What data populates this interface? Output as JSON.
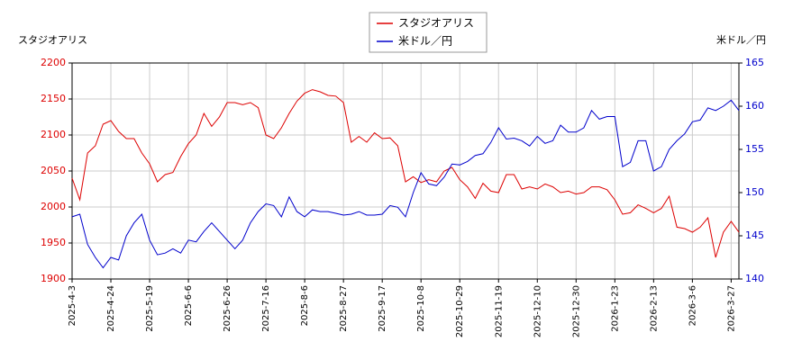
{
  "chart_data": {
    "type": "line",
    "legend": "top-center",
    "grid": true,
    "ylabel": "スタジオアリス",
    "y2label": "米ドル／円",
    "ylim": [
      1900,
      2200
    ],
    "yticks": [
      1900,
      1950,
      2000,
      2050,
      2100,
      2150,
      2200
    ],
    "y2lim": [
      140,
      165
    ],
    "y2ticks": [
      140,
      145,
      150,
      155,
      160,
      165
    ],
    "categories": [
      "2025-4-3",
      null,
      null,
      null,
      null,
      "2025-4-24",
      null,
      null,
      null,
      null,
      "2025-5-19",
      null,
      null,
      null,
      null,
      "2025-6-6",
      null,
      null,
      null,
      null,
      "2025-6-26",
      null,
      null,
      null,
      null,
      "2025-7-16",
      null,
      null,
      null,
      null,
      "2025-8-6",
      null,
      null,
      null,
      null,
      "2025-8-27",
      null,
      null,
      null,
      null,
      "2025-9-17",
      null,
      null,
      null,
      null,
      "2025-10-8",
      null,
      null,
      null,
      null,
      "2025-10-29",
      null,
      null,
      null,
      null,
      "2025-11-19",
      null,
      null,
      null,
      null,
      "2025-12-10",
      null,
      null,
      null,
      null,
      "2025-12-30",
      null,
      null,
      null,
      null,
      "2026-1-23",
      null,
      null,
      null,
      null,
      "2026-2-13",
      null,
      null,
      null,
      null,
      "2026-3-6",
      null,
      null,
      null,
      null,
      "2026-3-27",
      null
    ],
    "series": [
      {
        "name": "スタジオアリス",
        "color": "#dd0000",
        "axis": "y",
        "values": [
          2040,
          2010,
          2075,
          2085,
          2115,
          2120,
          2105,
          2095,
          2095,
          2075,
          2060,
          2035,
          2045,
          2048,
          2070,
          2088,
          2100,
          2130,
          2112,
          2125,
          2145,
          2145,
          2142,
          2145,
          2138,
          2100,
          2095,
          2110,
          2130,
          2147,
          2158,
          2163,
          2160,
          2155,
          2154,
          2145,
          2090,
          2098,
          2090,
          2103,
          2095,
          2096,
          2085,
          2035,
          2042,
          2034,
          2038,
          2035,
          2050,
          2055,
          2038,
          2028,
          2012,
          2033,
          2022,
          2020,
          2045,
          2045,
          2025,
          2028,
          2025,
          2032,
          2028,
          2020,
          2022,
          2018,
          2020,
          2028,
          2028,
          2024,
          2010,
          1990,
          1992,
          2003,
          1998,
          1992,
          1998,
          2015,
          1972,
          1970,
          1965,
          1972,
          1985,
          1930,
          1965,
          1980,
          1965
        ]
      },
      {
        "name": "米ドル／円",
        "color": "#0000cc",
        "axis": "y2",
        "values": [
          147.2,
          147.5,
          144,
          142.5,
          141.3,
          142.5,
          142.2,
          145,
          146.5,
          147.5,
          144.5,
          142.8,
          143,
          143.5,
          143,
          144.5,
          144.3,
          145.5,
          146.5,
          145.5,
          144.5,
          143.5,
          144.5,
          146.5,
          147.8,
          148.7,
          148.5,
          147.2,
          149.5,
          147.8,
          147.2,
          148,
          147.8,
          147.8,
          147.6,
          147.4,
          147.5,
          147.8,
          147.4,
          147.4,
          147.5,
          148.5,
          148.3,
          147.2,
          150,
          152.3,
          151,
          150.8,
          151.8,
          153.3,
          153.2,
          153.6,
          154.3,
          154.5,
          155.8,
          157.5,
          156.2,
          156.3,
          156,
          155.4,
          156.5,
          155.7,
          156,
          157.8,
          157,
          157,
          157.5,
          159.5,
          158.5,
          158.8,
          158.8,
          153,
          153.5,
          156,
          156,
          152.5,
          153,
          155,
          156,
          156.8,
          158.2,
          158.4,
          159.8,
          159.5,
          160,
          160.7,
          159.5
        ]
      }
    ]
  }
}
